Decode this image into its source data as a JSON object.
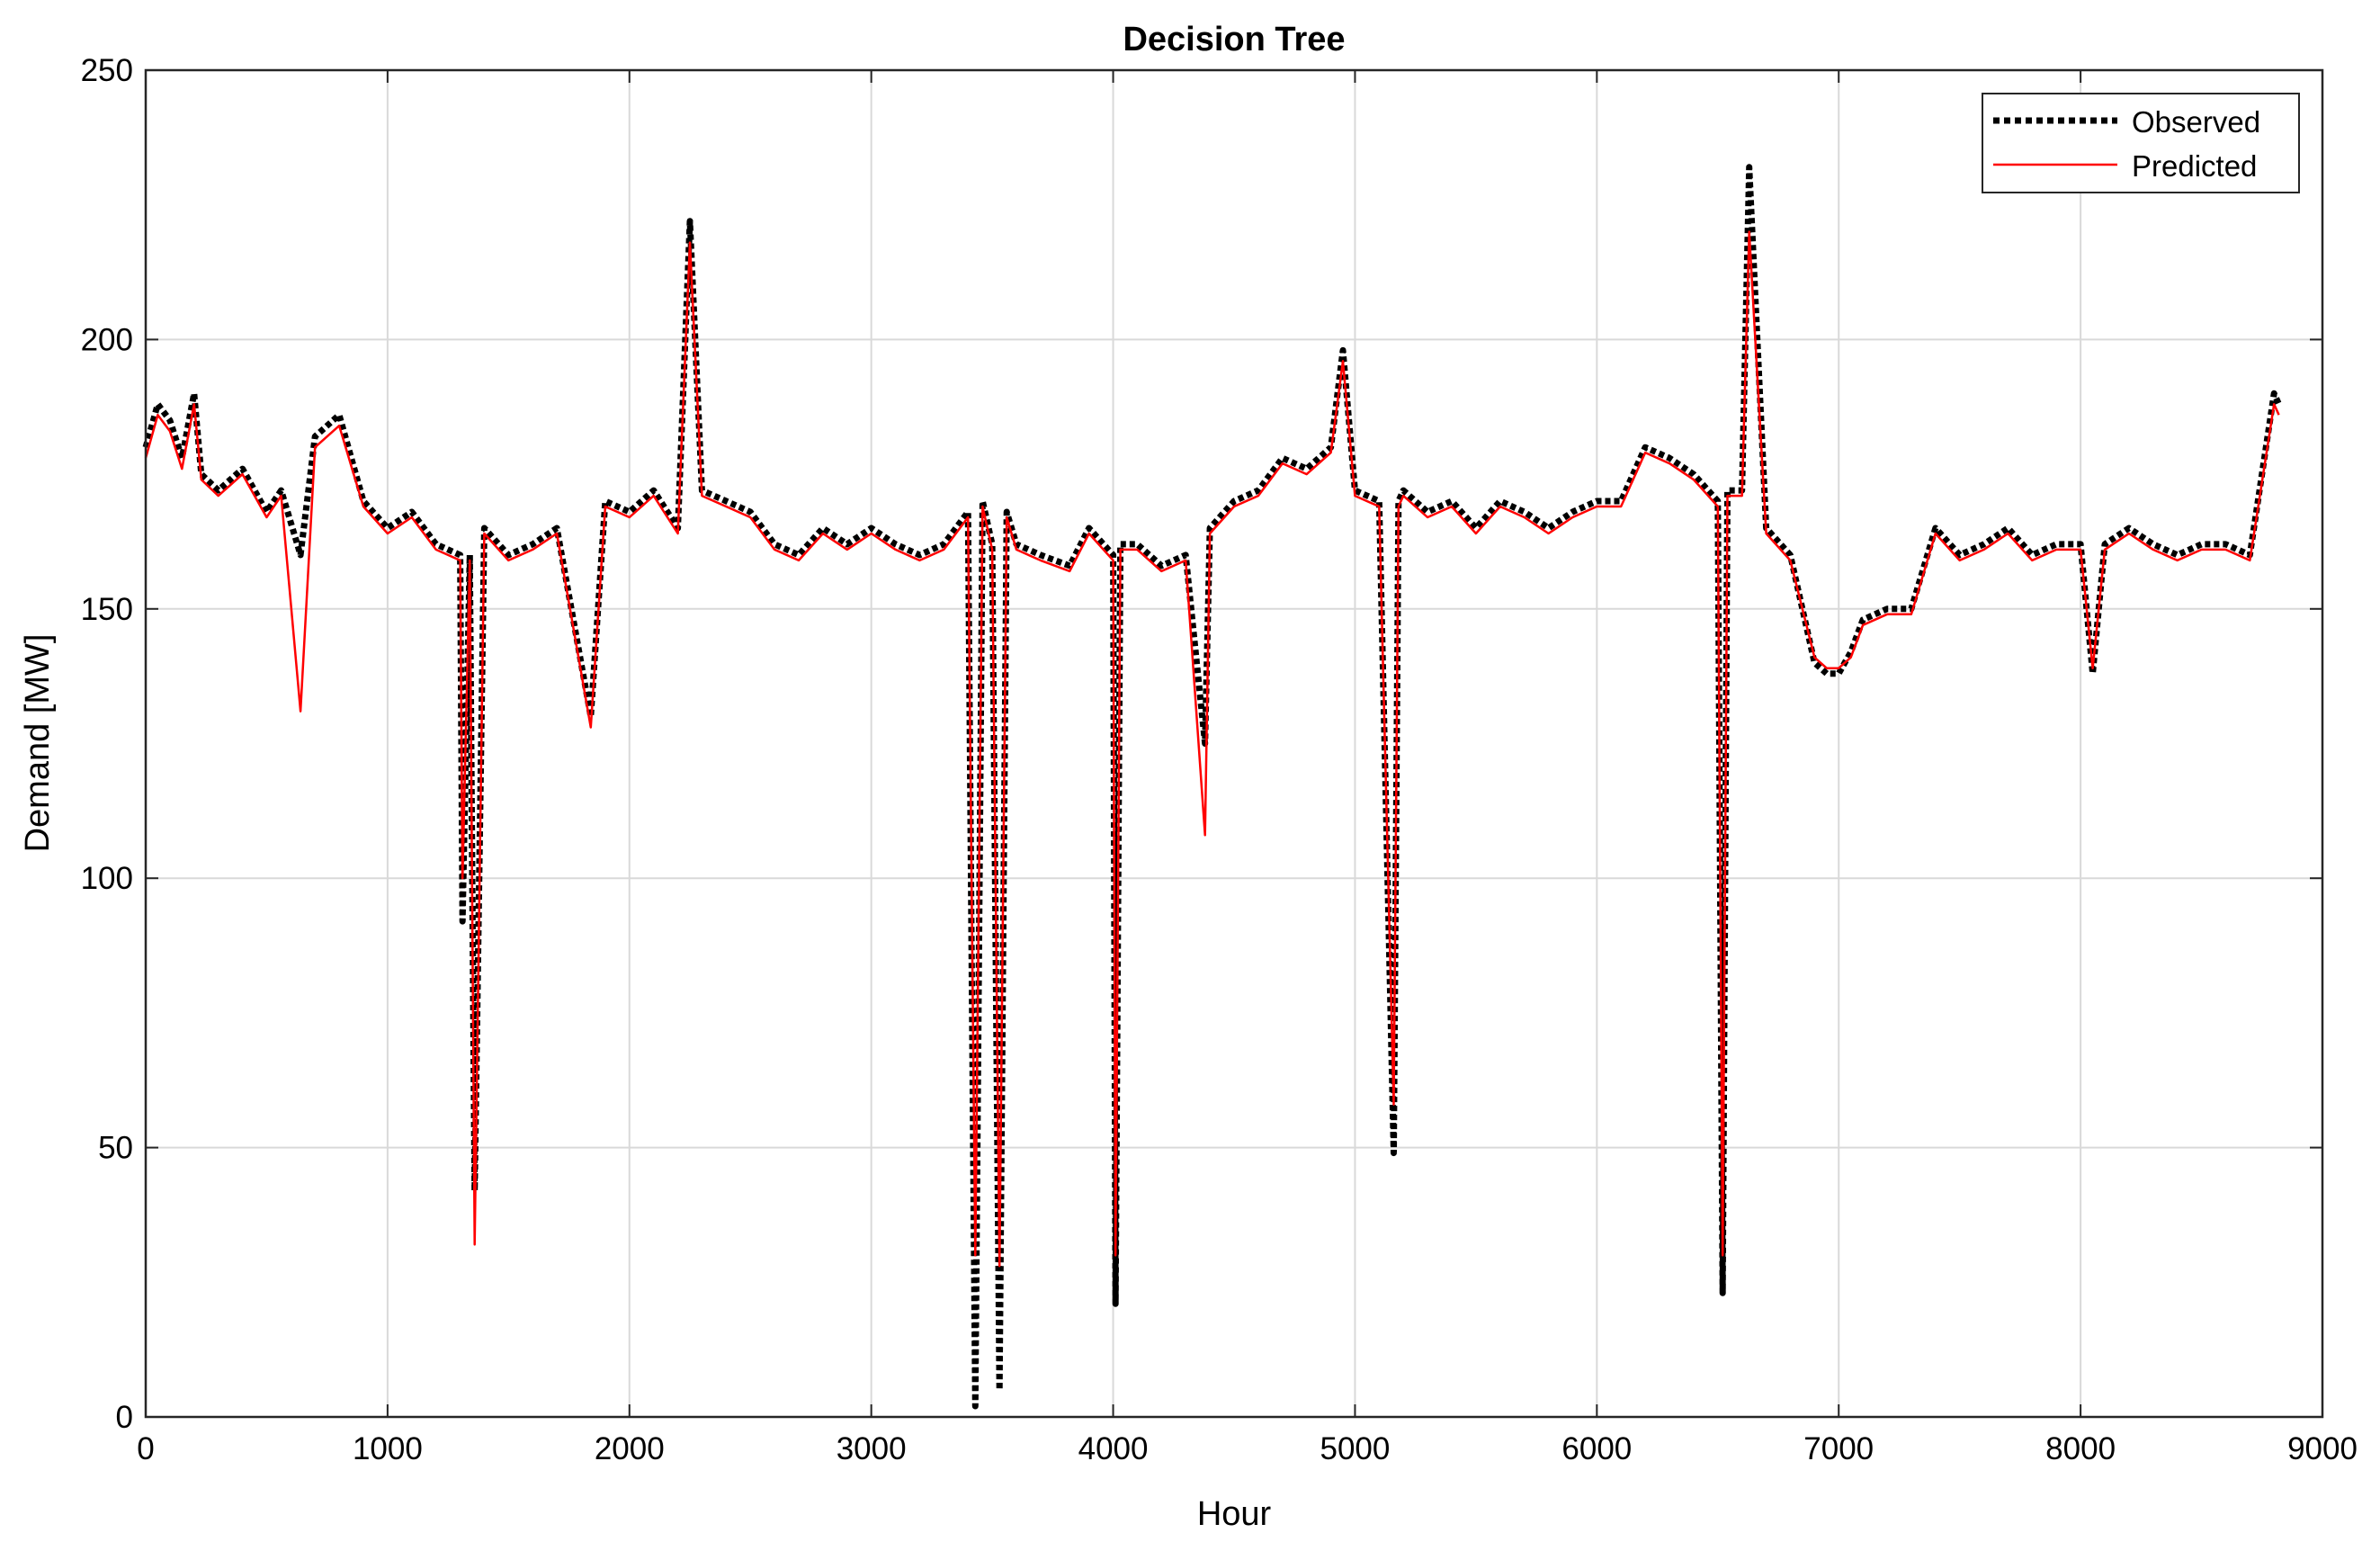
{
  "chart_data": {
    "type": "line",
    "title": "Decision Tree",
    "xlabel": "Hour",
    "ylabel": "Demand [MW]",
    "xlim": [
      0,
      9000
    ],
    "ylim": [
      0,
      250
    ],
    "xticks": [
      0,
      1000,
      2000,
      3000,
      4000,
      5000,
      6000,
      7000,
      8000,
      9000
    ],
    "yticks": [
      0,
      50,
      100,
      150,
      200,
      250
    ],
    "grid": true,
    "legend_position": "top-right",
    "series": [
      {
        "name": "Observed",
        "color": "#000000",
        "style": "dotted",
        "x": [
          0,
          50,
          100,
          150,
          200,
          230,
          300,
          400,
          500,
          560,
          640,
          700,
          800,
          900,
          1000,
          1100,
          1200,
          1300,
          1310,
          1340,
          1360,
          1400,
          1500,
          1600,
          1700,
          1840,
          1900,
          2000,
          2100,
          2200,
          2250,
          2300,
          2400,
          2500,
          2600,
          2700,
          2800,
          2900,
          3000,
          3100,
          3200,
          3300,
          3400,
          3430,
          3460,
          3500,
          3530,
          3560,
          3600,
          3700,
          3820,
          3900,
          4000,
          4010,
          4030,
          4100,
          4200,
          4300,
          4380,
          4400,
          4500,
          4600,
          4700,
          4800,
          4900,
          4950,
          5000,
          5100,
          5160,
          5180,
          5200,
          5300,
          5400,
          5500,
          5600,
          5700,
          5800,
          5900,
          6000,
          6100,
          6200,
          6300,
          6400,
          6500,
          6520,
          6540,
          6600,
          6630,
          6700,
          6800,
          6900,
          6950,
          7000,
          7050,
          7100,
          7200,
          7300,
          7400,
          7500,
          7600,
          7700,
          7800,
          7900,
          8000,
          8050,
          8100,
          8200,
          8300,
          8400,
          8500,
          8600,
          8700,
          8800,
          8820
        ],
        "values": [
          180,
          188,
          185,
          178,
          190,
          175,
          172,
          176,
          168,
          172,
          160,
          182,
          186,
          170,
          165,
          168,
          162,
          160,
          92,
          160,
          42,
          165,
          160,
          162,
          165,
          130,
          170,
          168,
          172,
          165,
          222,
          172,
          170,
          168,
          162,
          160,
          165,
          162,
          165,
          162,
          160,
          162,
          168,
          2,
          170,
          162,
          5,
          168,
          162,
          160,
          158,
          165,
          160,
          21,
          162,
          162,
          158,
          160,
          125,
          165,
          170,
          172,
          178,
          176,
          180,
          198,
          172,
          170,
          49,
          170,
          172,
          168,
          170,
          165,
          170,
          168,
          165,
          168,
          170,
          170,
          180,
          178,
          175,
          170,
          23,
          172,
          172,
          232,
          165,
          160,
          140,
          138,
          138,
          142,
          148,
          150,
          150,
          165,
          160,
          162,
          165,
          160,
          162,
          162,
          138,
          162,
          165,
          162,
          160,
          162,
          162,
          160,
          190,
          188
        ]
      },
      {
        "name": "Predicted",
        "color": "#ff0000",
        "style": "solid",
        "x": [
          0,
          50,
          100,
          150,
          200,
          230,
          300,
          400,
          500,
          560,
          640,
          700,
          800,
          900,
          1000,
          1100,
          1200,
          1300,
          1310,
          1340,
          1360,
          1400,
          1500,
          1600,
          1700,
          1840,
          1900,
          2000,
          2100,
          2200,
          2250,
          2300,
          2400,
          2500,
          2600,
          2700,
          2800,
          2900,
          3000,
          3100,
          3200,
          3300,
          3400,
          3430,
          3460,
          3500,
          3530,
          3560,
          3600,
          3700,
          3820,
          3900,
          4000,
          4010,
          4030,
          4100,
          4200,
          4300,
          4380,
          4400,
          4500,
          4600,
          4700,
          4800,
          4900,
          4950,
          5000,
          5100,
          5160,
          5180,
          5200,
          5300,
          5400,
          5500,
          5600,
          5700,
          5800,
          5900,
          6000,
          6100,
          6200,
          6300,
          6400,
          6500,
          6520,
          6540,
          6600,
          6630,
          6700,
          6800,
          6900,
          6950,
          7000,
          7050,
          7100,
          7200,
          7300,
          7400,
          7500,
          7600,
          7700,
          7800,
          7900,
          8000,
          8050,
          8100,
          8200,
          8300,
          8400,
          8500,
          8600,
          8700,
          8800,
          8820
        ],
        "values": [
          178,
          186,
          183,
          176,
          188,
          174,
          171,
          175,
          167,
          171,
          131,
          180,
          184,
          169,
          164,
          167,
          161,
          159,
          100,
          159,
          32,
          164,
          159,
          161,
          164,
          128,
          169,
          167,
          171,
          164,
          218,
          171,
          169,
          167,
          161,
          159,
          164,
          161,
          164,
          161,
          159,
          161,
          167,
          30,
          169,
          161,
          28,
          167,
          161,
          159,
          157,
          164,
          159,
          30,
          161,
          161,
          157,
          159,
          108,
          164,
          169,
          171,
          177,
          175,
          179,
          196,
          171,
          169,
          58,
          169,
          171,
          167,
          169,
          164,
          169,
          167,
          164,
          167,
          169,
          169,
          179,
          177,
          174,
          169,
          30,
          171,
          171,
          220,
          164,
          159,
          141,
          139,
          139,
          141,
          147,
          149,
          149,
          164,
          159,
          161,
          164,
          159,
          161,
          161,
          139,
          161,
          164,
          161,
          159,
          161,
          161,
          159,
          188,
          186
        ]
      }
    ]
  }
}
